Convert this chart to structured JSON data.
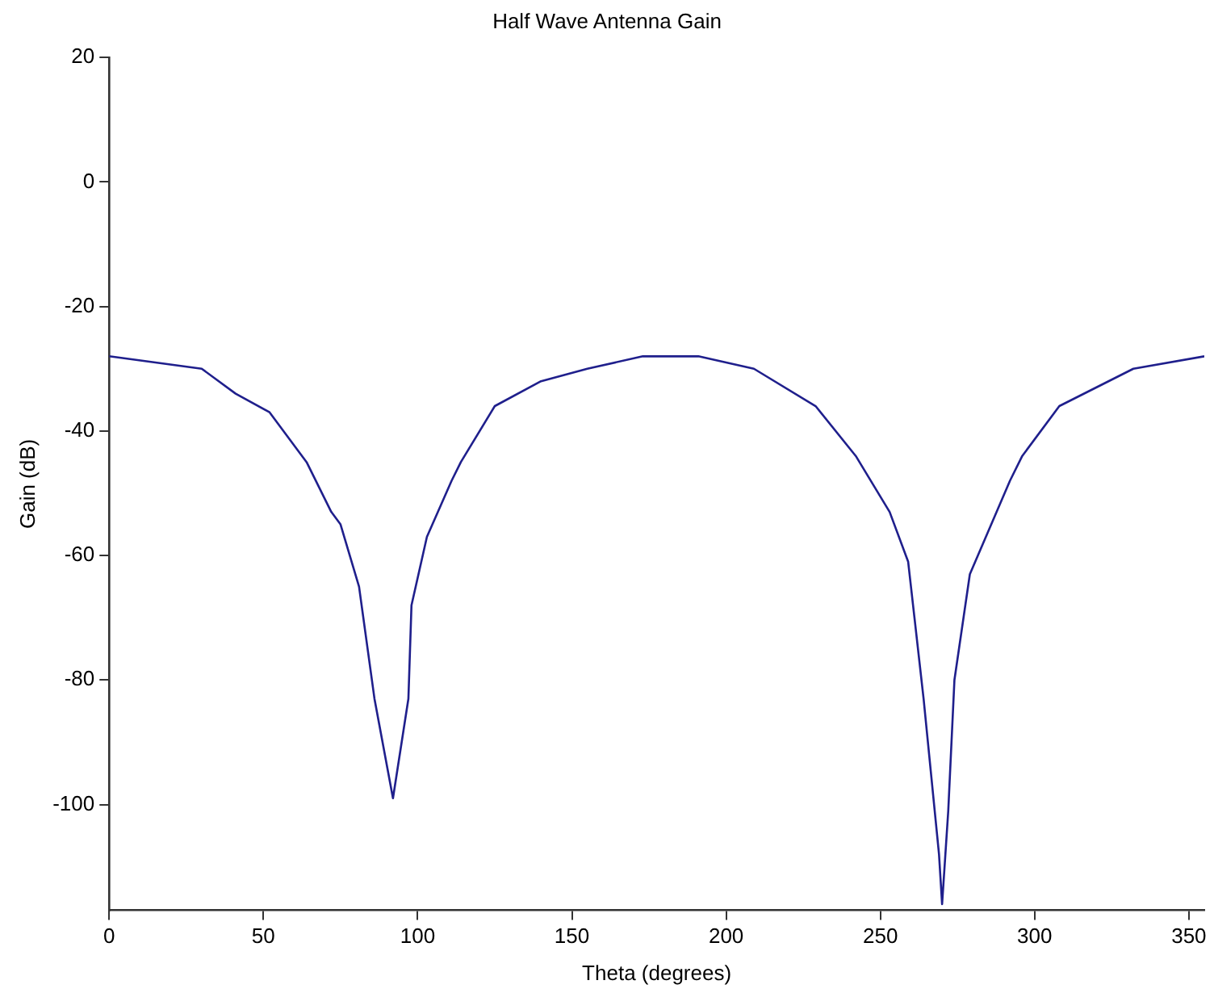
{
  "chart_data": {
    "type": "line",
    "title": "Half Wave Antenna Gain",
    "xlabel": "Theta (degrees)",
    "ylabel": "Gain (dB)",
    "x": [
      0,
      30,
      41,
      52,
      64,
      72,
      75,
      81,
      86,
      92,
      97,
      98,
      103,
      111,
      114,
      125,
      140,
      155,
      173,
      191,
      209,
      229,
      242,
      253,
      259,
      264,
      269,
      270,
      272,
      274,
      279,
      292,
      296,
      308,
      332,
      355
    ],
    "series": [
      {
        "color": "#1f1f8c",
        "values": [
          -28,
          -30,
          -34,
          -37,
          -45,
          -53,
          -55,
          -65,
          -83,
          -99,
          -83,
          -68,
          -57,
          -48,
          -45,
          -36,
          -32,
          -30,
          -28,
          -28,
          -30,
          -36,
          -44,
          -53,
          -61,
          -83,
          -108,
          -116,
          -101,
          -80,
          -63,
          -48,
          -44,
          -36,
          -30,
          -28
        ]
      }
    ],
    "xlim": [
      0,
      355
    ],
    "ylim": [
      -117,
      20
    ],
    "xticks": [
      0,
      50,
      100,
      150,
      200,
      250,
      300,
      350
    ],
    "yticks": [
      20,
      0,
      -20,
      -40,
      -60,
      -80,
      -100
    ],
    "grid": false,
    "legend": false,
    "marker": "none",
    "line_style": "solid"
  }
}
